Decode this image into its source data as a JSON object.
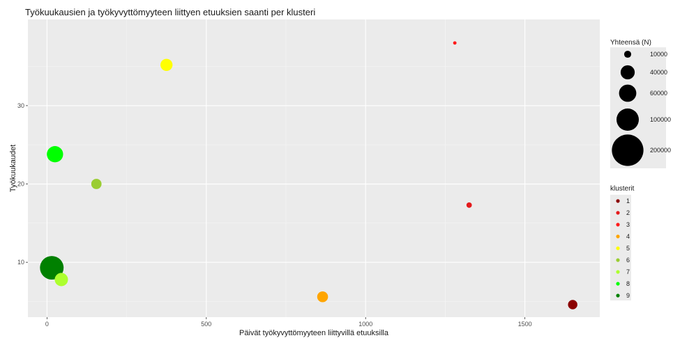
{
  "chart_data": {
    "type": "scatter",
    "subtype": "bubble",
    "title": "Työkuukausien ja työkyvyttömyyteen liittyen etuuksien saanti per klusteri",
    "xlabel": "Päivät työkyvyttömyyteen liittyvillä etuuksilla",
    "ylabel": "Työkuukaudet",
    "xlim": [
      -60,
      1735
    ],
    "ylim": [
      3,
      41
    ],
    "xticks": [
      0,
      500,
      1000,
      1500
    ],
    "yticks": [
      10,
      20,
      30
    ],
    "grid": true,
    "background": "#ebebeb",
    "points": [
      {
        "cluster": "1",
        "x": 1650,
        "y": 4.6,
        "size": 15000,
        "color": "#8b0000"
      },
      {
        "cluster": "2",
        "x": 1325,
        "y": 17.3,
        "size": 5000,
        "color": "#e41a1c"
      },
      {
        "cluster": "3",
        "x": 1280,
        "y": 38.0,
        "size": 2000,
        "color": "#ff1a1a"
      },
      {
        "cluster": "4",
        "x": 865,
        "y": 5.6,
        "size": 20000,
        "color": "#ffa500"
      },
      {
        "cluster": "5",
        "x": 375,
        "y": 35.2,
        "size": 25000,
        "color": "#ffff00"
      },
      {
        "cluster": "6",
        "x": 155,
        "y": 20.0,
        "size": 18000,
        "color": "#9acd32"
      },
      {
        "cluster": "7",
        "x": 45,
        "y": 7.8,
        "size": 30000,
        "color": "#adff2f"
      },
      {
        "cluster": "8",
        "x": 25,
        "y": 23.8,
        "size": 45000,
        "color": "#00ff00"
      },
      {
        "cluster": "9",
        "x": 15,
        "y": 9.3,
        "size": 95000,
        "color": "#008000"
      }
    ],
    "size_legend": {
      "title": "Yhteensä (N)",
      "entries": [
        {
          "label": "10000",
          "value": 10000
        },
        {
          "label": "40000",
          "value": 40000
        },
        {
          "label": "60000",
          "value": 60000
        },
        {
          "label": "100000",
          "value": 100000
        },
        {
          "label": "200000",
          "value": 200000
        }
      ]
    },
    "color_legend": {
      "title": "klusterit",
      "entries": [
        {
          "label": "1",
          "color": "#8b0000"
        },
        {
          "label": "2",
          "color": "#e41a1c"
        },
        {
          "label": "3",
          "color": "#ff1a1a"
        },
        {
          "label": "4",
          "color": "#ffa500"
        },
        {
          "label": "5",
          "color": "#ffff00"
        },
        {
          "label": "6",
          "color": "#9acd32"
        },
        {
          "label": "7",
          "color": "#adff2f"
        },
        {
          "label": "8",
          "color": "#00ff00"
        },
        {
          "label": "9",
          "color": "#008000"
        }
      ]
    },
    "legend_position": "right"
  }
}
